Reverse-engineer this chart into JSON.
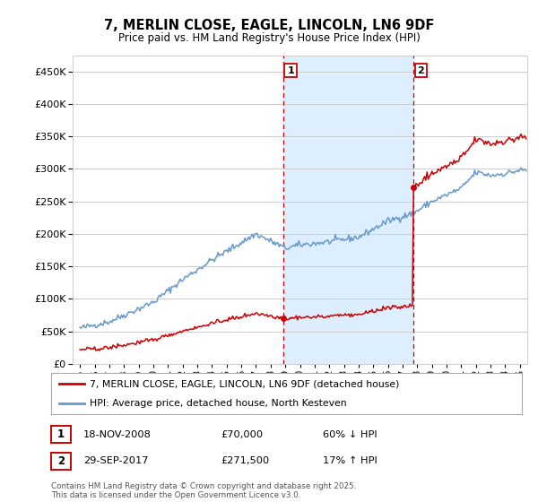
{
  "title": "7, MERLIN CLOSE, EAGLE, LINCOLN, LN6 9DF",
  "subtitle": "Price paid vs. HM Land Registry's House Price Index (HPI)",
  "legend_line1": "7, MERLIN CLOSE, EAGLE, LINCOLN, LN6 9DF (detached house)",
  "legend_line2": "HPI: Average price, detached house, North Kesteven",
  "footnote": "Contains HM Land Registry data © Crown copyright and database right 2025.\nThis data is licensed under the Open Government Licence v3.0.",
  "annotation1": {
    "num": "1",
    "date": "18-NOV-2008",
    "price": "£70,000",
    "hpi": "60% ↓ HPI"
  },
  "annotation2": {
    "num": "2",
    "date": "29-SEP-2017",
    "price": "£271,500",
    "hpi": "17% ↑ HPI"
  },
  "sale1_x": 2008.88,
  "sale1_y": 70000,
  "sale2_x": 2017.75,
  "sale2_y": 271500,
  "vline1_x": 2008.88,
  "vline2_x": 2017.75,
  "red_color": "#cc0000",
  "blue_color": "#6699cc",
  "shading_color": "#ddeeff",
  "ylim_max": 475000,
  "yticks": [
    0,
    50000,
    100000,
    150000,
    200000,
    250000,
    300000,
    350000,
    400000,
    450000
  ],
  "xlim_start": 1994.5,
  "xlim_end": 2025.5,
  "background_color": "#ffffff",
  "grid_color": "#cccccc"
}
